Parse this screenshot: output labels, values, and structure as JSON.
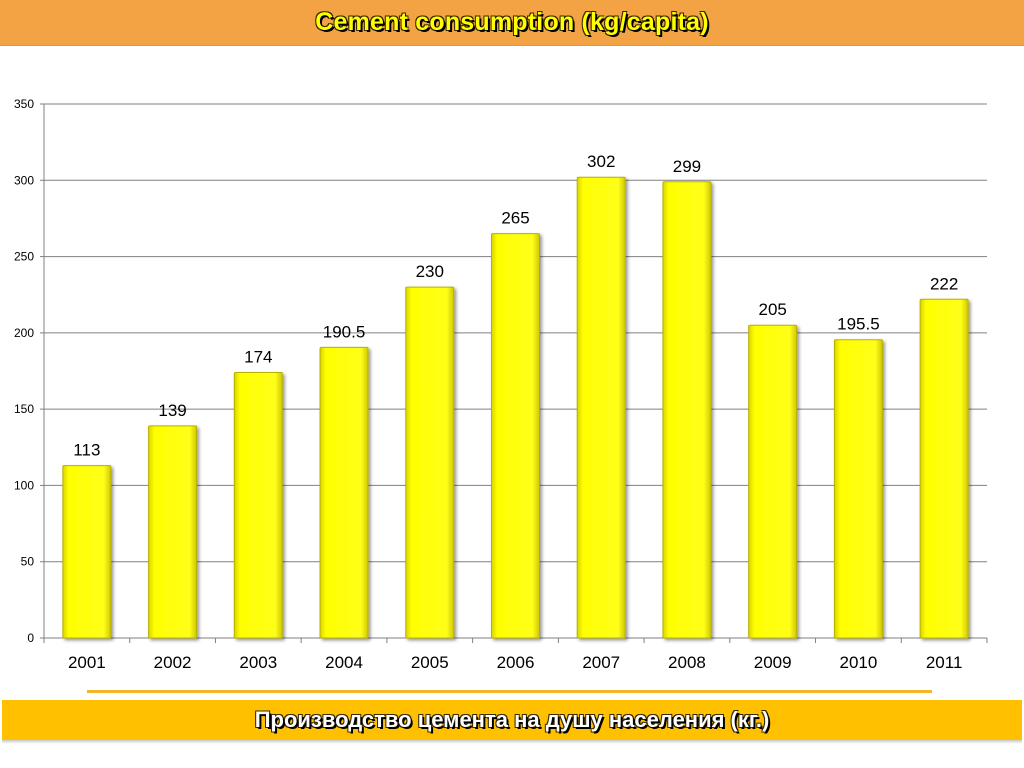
{
  "title": "Cement consumption (kg/capita)",
  "subtitle": "Производство цемента на душу населения (кг.)",
  "colors": {
    "title_bar": "#f4a344",
    "title_text": "#ffff00",
    "bar_fill": "#ffff00",
    "bar_edge": "#b8b000",
    "subtitle_bar": "#ffc000",
    "subtitle_text": "#ffffff",
    "divider": "#f5b52a",
    "gridline": "#808080"
  },
  "chart_data": {
    "type": "bar",
    "categories": [
      "2001",
      "2002",
      "2003",
      "2004",
      "2005",
      "2006",
      "2007",
      "2008",
      "2009",
      "2010",
      "2011"
    ],
    "values": [
      113,
      139,
      174,
      190.5,
      230,
      265,
      302,
      299,
      205,
      195.5,
      222
    ],
    "value_labels": [
      "113",
      "139",
      "174",
      "190.5",
      "230",
      "265",
      "302",
      "299",
      "205",
      "195.5",
      "222"
    ],
    "title": "Cement consumption (kg/capita)",
    "xlabel": "",
    "ylabel": "",
    "ylim": [
      0,
      350
    ],
    "yticks": [
      0,
      50,
      100,
      150,
      200,
      250,
      300,
      350
    ],
    "ytick_labels": [
      "0",
      "50",
      "100",
      "150",
      "200",
      "250",
      "300",
      "350"
    ],
    "grid": true,
    "legend": "none"
  }
}
